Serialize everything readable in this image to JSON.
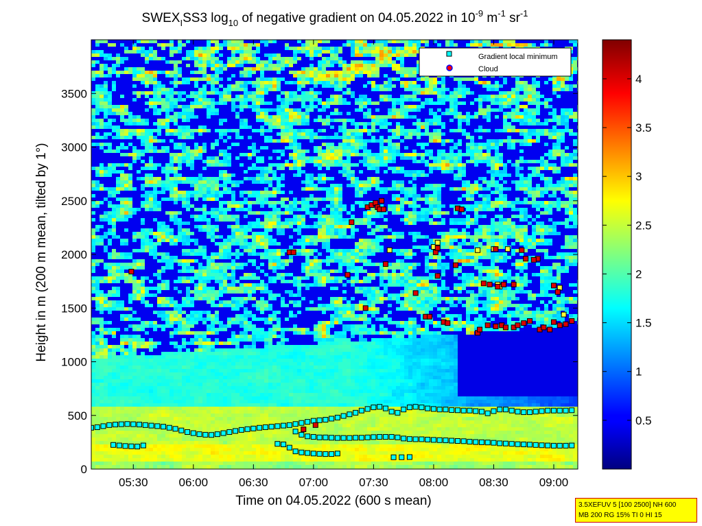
{
  "chart_data": {
    "type": "heatmap",
    "title": {
      "prefix": "SWEX",
      "prefix_sub": "I",
      "main": "SS3 log",
      "log_sub": "10",
      "mid": " of negative gradient on 04.05.2022 in 10",
      "unit_exp1": "-9",
      "unit_m": " m",
      "unit_exp2": "-1",
      "unit_sr": " sr",
      "unit_exp3": "-1"
    },
    "xlabel": "Time on 04.05.2022 (600 s mean)",
    "ylabel": "Height in m (200 m mean, tilted by 1°)",
    "x_ticks": [
      "05:30",
      "06:00",
      "06:30",
      "07:00",
      "07:30",
      "08:00",
      "08:30",
      "09:00"
    ],
    "x_range": [
      "05:09",
      "09:12"
    ],
    "y_ticks": [
      0,
      500,
      1000,
      1500,
      2000,
      2500,
      3000,
      3500
    ],
    "y_range": [
      0,
      4000
    ],
    "colorbar": {
      "ticks": [
        "0.5",
        "1",
        "1.5",
        "2",
        "2.5",
        "3",
        "3.5",
        "4"
      ],
      "range": [
        0,
        4.4
      ],
      "colormap": "jet"
    },
    "legend": {
      "placement": "top-right",
      "entries": [
        {
          "label": "Gradient local minimum",
          "marker": "square",
          "color": "#00ffff"
        },
        {
          "label": "Cloud",
          "marker": "circle",
          "color": "#ff0000"
        }
      ]
    },
    "series": [
      {
        "name": "Gradient local minimum",
        "points": [
          [
            "05:09",
            385
          ],
          [
            "05:12",
            390
          ],
          [
            "05:15",
            400
          ],
          [
            "05:18",
            410
          ],
          [
            "05:21",
            415
          ],
          [
            "05:24",
            418
          ],
          [
            "05:27",
            420
          ],
          [
            "05:30",
            418
          ],
          [
            "05:33",
            415
          ],
          [
            "05:36",
            410
          ],
          [
            "05:39",
            405
          ],
          [
            "05:42",
            400
          ],
          [
            "05:45",
            395
          ],
          [
            "05:48",
            385
          ],
          [
            "05:51",
            375
          ],
          [
            "05:54",
            360
          ],
          [
            "05:57",
            345
          ],
          [
            "06:00",
            335
          ],
          [
            "06:03",
            325
          ],
          [
            "06:06",
            320
          ],
          [
            "06:09",
            318
          ],
          [
            "06:12",
            325
          ],
          [
            "06:15",
            335
          ],
          [
            "06:18",
            345
          ],
          [
            "06:21",
            355
          ],
          [
            "06:24",
            365
          ],
          [
            "06:27",
            372
          ],
          [
            "06:30",
            378
          ],
          [
            "06:33",
            385
          ],
          [
            "06:36",
            390
          ],
          [
            "06:39",
            395
          ],
          [
            "06:42",
            400
          ],
          [
            "06:45",
            405
          ],
          [
            "06:48",
            410
          ],
          [
            "06:51",
            420
          ],
          [
            "06:54",
            430
          ],
          [
            "06:57",
            440
          ],
          [
            "07:00",
            450
          ],
          [
            "07:03",
            455
          ],
          [
            "07:06",
            460
          ],
          [
            "07:09",
            470
          ],
          [
            "07:12",
            480
          ],
          [
            "07:15",
            495
          ],
          [
            "07:18",
            510
          ],
          [
            "07:21",
            525
          ],
          [
            "07:24",
            545
          ],
          [
            "07:27",
            560
          ],
          [
            "07:30",
            575
          ],
          [
            "07:33",
            580
          ],
          [
            "07:36",
            565
          ],
          [
            "07:39",
            535
          ],
          [
            "07:42",
            525
          ],
          [
            "07:45",
            555
          ],
          [
            "07:48",
            575
          ],
          [
            "07:51",
            580
          ],
          [
            "07:54",
            575
          ],
          [
            "07:57",
            565
          ],
          [
            "08:00",
            560
          ],
          [
            "08:03",
            555
          ],
          [
            "08:06",
            555
          ],
          [
            "08:09",
            550
          ],
          [
            "08:12",
            548
          ],
          [
            "08:15",
            545
          ],
          [
            "08:18",
            545
          ],
          [
            "08:21",
            540
          ],
          [
            "08:24",
            535
          ],
          [
            "08:27",
            520
          ],
          [
            "08:30",
            540
          ],
          [
            "08:33",
            555
          ],
          [
            "08:36",
            555
          ],
          [
            "08:39",
            545
          ],
          [
            "08:42",
            535
          ],
          [
            "08:45",
            530
          ],
          [
            "08:48",
            530
          ],
          [
            "08:51",
            535
          ],
          [
            "08:54",
            540
          ],
          [
            "08:57",
            545
          ],
          [
            "09:00",
            545
          ],
          [
            "09:03",
            545
          ],
          [
            "09:06",
            545
          ],
          [
            "09:09",
            548
          ],
          [
            "05:20",
            225
          ],
          [
            "05:23",
            220
          ],
          [
            "05:26",
            215
          ],
          [
            "05:29",
            212
          ],
          [
            "05:32",
            210
          ],
          [
            "05:35",
            220
          ],
          [
            "06:51",
            350
          ],
          [
            "06:54",
            320
          ],
          [
            "06:57",
            305
          ],
          [
            "07:00",
            300
          ],
          [
            "07:03",
            295
          ],
          [
            "07:06",
            295
          ],
          [
            "07:09",
            292
          ],
          [
            "07:12",
            290
          ],
          [
            "07:15",
            290
          ],
          [
            "07:18",
            290
          ],
          [
            "07:21",
            292
          ],
          [
            "07:24",
            292
          ],
          [
            "07:27",
            295
          ],
          [
            "07:30",
            298
          ],
          [
            "07:33",
            300
          ],
          [
            "07:36",
            300
          ],
          [
            "07:39",
            300
          ],
          [
            "07:42",
            295
          ],
          [
            "07:45",
            285
          ],
          [
            "07:48",
            280
          ],
          [
            "07:51",
            278
          ],
          [
            "07:54",
            278
          ],
          [
            "07:57",
            275
          ],
          [
            "08:00",
            272
          ],
          [
            "08:03",
            270
          ],
          [
            "08:06",
            268
          ],
          [
            "08:09",
            265
          ],
          [
            "08:12",
            262
          ],
          [
            "08:15",
            260
          ],
          [
            "08:18",
            255
          ],
          [
            "08:21",
            252
          ],
          [
            "08:24",
            250
          ],
          [
            "08:27",
            248
          ],
          [
            "08:30",
            245
          ],
          [
            "08:33",
            240
          ],
          [
            "08:36",
            238
          ],
          [
            "08:39",
            235
          ],
          [
            "08:42",
            232
          ],
          [
            "08:45",
            230
          ],
          [
            "08:48",
            228
          ],
          [
            "08:51",
            225
          ],
          [
            "08:54",
            222
          ],
          [
            "08:57",
            220
          ],
          [
            "09:00",
            218
          ],
          [
            "09:03",
            218
          ],
          [
            "09:06",
            218
          ],
          [
            "09:09",
            220
          ],
          [
            "06:42",
            235
          ],
          [
            "06:45",
            230
          ],
          [
            "06:48",
            200
          ],
          [
            "06:51",
            165
          ],
          [
            "06:54",
            155
          ],
          [
            "06:57",
            150
          ],
          [
            "07:00",
            145
          ],
          [
            "07:03",
            142
          ],
          [
            "07:06",
            140
          ],
          [
            "07:09",
            140
          ],
          [
            "07:12",
            145
          ],
          [
            "07:40",
            110
          ],
          [
            "07:44",
            110
          ],
          [
            "07:48",
            112
          ],
          [
            "07:38",
            2040
          ],
          [
            "08:00",
            2070
          ],
          [
            "08:02",
            2110
          ],
          [
            "08:22",
            2040
          ],
          [
            "08:30",
            2050
          ],
          [
            "08:37",
            2050
          ],
          [
            "09:05",
            1440
          ],
          [
            "08:33",
            1700
          ],
          [
            "08:32",
            1720
          ],
          [
            "09:03",
            1690
          ]
        ]
      },
      {
        "name": "Cloud",
        "points": [
          [
            "05:29",
            1840
          ],
          [
            "06:48",
            2020
          ],
          [
            "06:50",
            2020
          ],
          [
            "06:55",
            370
          ],
          [
            "07:01",
            410
          ],
          [
            "07:17",
            1810
          ],
          [
            "07:19",
            2300
          ],
          [
            "07:27",
            2440
          ],
          [
            "07:29",
            2460
          ],
          [
            "07:31",
            2480
          ],
          [
            "07:32",
            2440
          ],
          [
            "07:33",
            2420
          ],
          [
            "07:34",
            2500
          ],
          [
            "07:35",
            2420
          ],
          [
            "07:36",
            1910
          ],
          [
            "07:26",
            1500
          ],
          [
            "07:51",
            1640
          ],
          [
            "07:56",
            1420
          ],
          [
            "07:58",
            1420
          ],
          [
            "08:02",
            1800
          ],
          [
            "08:01",
            2020
          ],
          [
            "08:02",
            2060
          ],
          [
            "08:05",
            1370
          ],
          [
            "08:07",
            1360
          ],
          [
            "08:11",
            1900
          ],
          [
            "08:12",
            2430
          ],
          [
            "08:14",
            2420
          ],
          [
            "08:22",
            1270
          ],
          [
            "08:23",
            1300
          ],
          [
            "08:25",
            1730
          ],
          [
            "08:28",
            1720
          ],
          [
            "08:32",
            1700
          ],
          [
            "08:35",
            1720
          ],
          [
            "08:40",
            1720
          ],
          [
            "08:27",
            1340
          ],
          [
            "08:31",
            1330
          ],
          [
            "08:34",
            1340
          ],
          [
            "08:36",
            1320
          ],
          [
            "08:40",
            1320
          ],
          [
            "08:42",
            1340
          ],
          [
            "08:45",
            1360
          ],
          [
            "08:48",
            1380
          ],
          [
            "08:52",
            1960
          ],
          [
            "08:46",
            1960
          ],
          [
            "08:50",
            1950
          ],
          [
            "08:53",
            1300
          ],
          [
            "08:55",
            1320
          ],
          [
            "08:58",
            1300
          ],
          [
            "09:00",
            1370
          ],
          [
            "09:03",
            1340
          ],
          [
            "09:06",
            1350
          ],
          [
            "09:09",
            1380
          ],
          [
            "09:00",
            1710
          ],
          [
            "09:02",
            1650
          ],
          [
            "08:44",
            2040
          ],
          [
            "08:31",
            2050
          ]
        ]
      }
    ]
  },
  "info_box": {
    "line1": "3.5XEFUV 5 [100 2500] NH 600",
    "line2": "MB 200 RG 15% TI 0 HI 15"
  }
}
